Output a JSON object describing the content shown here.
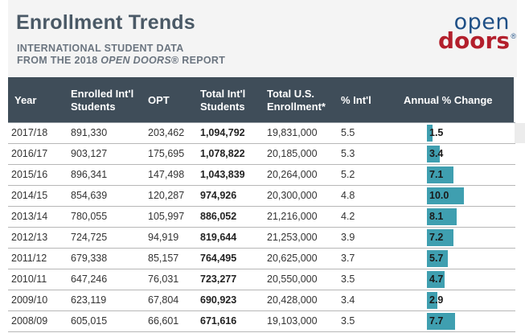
{
  "header": {
    "title": "Enrollment Trends",
    "subtitle_line1": "INTERNATIONAL STUDENT DATA",
    "subtitle_line2_prefix": "FROM THE 2018 ",
    "subtitle_line2_italic": "OPEN DOORS",
    "subtitle_line2_suffix": "® REPORT"
  },
  "logo": {
    "top": "open",
    "bottom": "doors",
    "mark": "®"
  },
  "colors": {
    "header_bg": "#3f4d59",
    "bar": "#3f9fb0",
    "logo_blue": "#1e4f86",
    "logo_red": "#b31f2c",
    "title": "#4a5966"
  },
  "table": {
    "columns": [
      "Year",
      "Enrolled Int'l Students",
      "OPT",
      "Total Int'l Students",
      "Total U.S. Enrollment*",
      "% Int'l",
      "Annual % Change"
    ],
    "col_lines": [
      [
        "Year"
      ],
      [
        "Enrolled Int'l",
        "Students"
      ],
      [
        "OPT"
      ],
      [
        "Total Int'l",
        "Students"
      ],
      [
        "Total U.S.",
        "Enrollment*"
      ],
      [
        "% Int'l"
      ],
      [
        "Annual % Change"
      ]
    ],
    "rows": [
      {
        "year": "2017/18",
        "enrolled": "891,330",
        "opt": "203,462",
        "total": "1,094,792",
        "us": "19,831,000",
        "pct": "5.5",
        "change": "1.5",
        "change_value": 1.5
      },
      {
        "year": "2016/17",
        "enrolled": "903,127",
        "opt": "175,695",
        "total": "1,078,822",
        "us": "20,185,000",
        "pct": "5.3",
        "change": "3.4",
        "change_value": 3.4
      },
      {
        "year": "2015/16",
        "enrolled": "896,341",
        "opt": "147,498",
        "total": "1,043,839",
        "us": "20,264,000",
        "pct": "5.2",
        "change": "7.1",
        "change_value": 7.1
      },
      {
        "year": "2014/15",
        "enrolled": "854,639",
        "opt": "120,287",
        "total": "974,926",
        "us": "20,300,000",
        "pct": "4.8",
        "change": "10.0",
        "change_value": 10.0
      },
      {
        "year": "2013/14",
        "enrolled": "780,055",
        "opt": "105,997",
        "total": "886,052",
        "us": "21,216,000",
        "pct": "4.2",
        "change": "8.1",
        "change_value": 8.1
      },
      {
        "year": "2012/13",
        "enrolled": "724,725",
        "opt": "94,919",
        "total": "819,644",
        "us": "21,253,000",
        "pct": "3.9",
        "change": "7.2",
        "change_value": 7.2
      },
      {
        "year": "2011/12",
        "enrolled": "679,338",
        "opt": "85,157",
        "total": "764,495",
        "us": "20,625,000",
        "pct": "3.7",
        "change": "5.7",
        "change_value": 5.7
      },
      {
        "year": "2010/11",
        "enrolled": "647,246",
        "opt": "76,031",
        "total": "723,277",
        "us": "20,550,000",
        "pct": "3.5",
        "change": "4.7",
        "change_value": 4.7
      },
      {
        "year": "2009/10",
        "enrolled": "623,119",
        "opt": "67,804",
        "total": "690,923",
        "us": "20,428,000",
        "pct": "3.4",
        "change": "2.9",
        "change_value": 2.9
      },
      {
        "year": "2008/09",
        "enrolled": "605,015",
        "opt": "66,601",
        "total": "671,616",
        "us": "19,103,000",
        "pct": "3.5",
        "change": "7.7",
        "change_value": 7.7
      }
    ]
  }
}
